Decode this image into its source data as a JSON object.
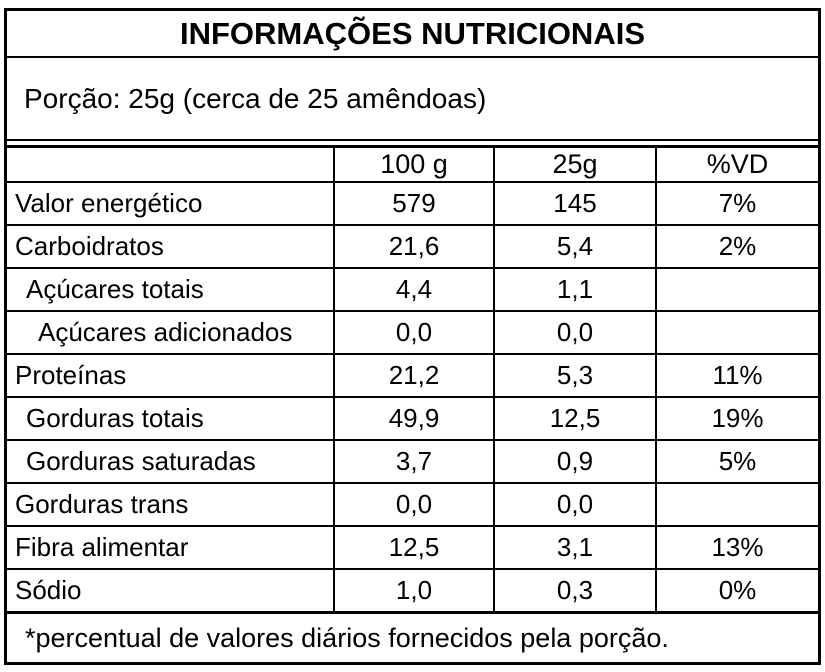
{
  "title": "INFORMAÇÕES NUTRICIONAIS",
  "portion": "Porção: 25g (cerca de 25 amêndoas)",
  "table": {
    "headers": [
      "",
      "100 g",
      "25g",
      "%VD"
    ],
    "rows": [
      {
        "label": "Valor energético",
        "per100": "579",
        "per25": "145",
        "vd": "7%"
      },
      {
        "label": "Carboidratos",
        "per100": "21,6",
        "per25": "5,4",
        "vd": "2%"
      },
      {
        "label": "Açúcares totais",
        "per100": "4,4",
        "per25": "1,1",
        "vd": ""
      },
      {
        "label": "Açúcares adicionados",
        "per100": "0,0",
        "per25": "0,0",
        "vd": ""
      },
      {
        "label": "Proteínas",
        "per100": "21,2",
        "per25": "5,3",
        "vd": "11%"
      },
      {
        "label": "Gorduras totais",
        "per100": "49,9",
        "per25": "12,5",
        "vd": "19%"
      },
      {
        "label": "Gorduras saturadas",
        "per100": "3,7",
        "per25": "0,9",
        "vd": "5%"
      },
      {
        "label": "Gorduras trans",
        "per100": "0,0",
        "per25": "0,0",
        "vd": ""
      },
      {
        "label": "Fibra alimentar",
        "per100": "12,5",
        "per25": "3,1",
        "vd": "13%"
      },
      {
        "label": "Sódio",
        "per100": "1,0",
        "per25": "0,3",
        "vd": "0%"
      }
    ]
  },
  "footnote": "*percentual de valores diários fornecidos pela porção."
}
